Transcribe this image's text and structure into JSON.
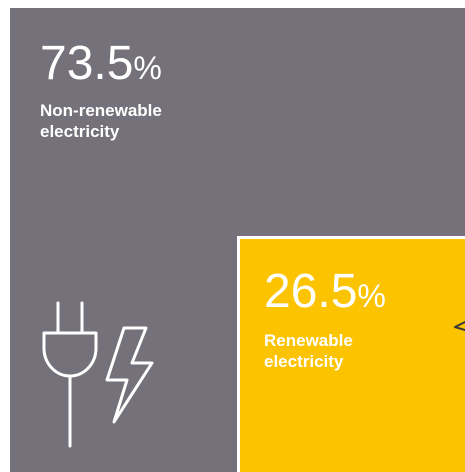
{
  "chart_data": {
    "type": "treemap",
    "segments": [
      {
        "value_label": "73.5",
        "value": 73.5,
        "unit": "%",
        "label_line1": "Non-renewable",
        "label_line2": "electricity",
        "color": "#74717a"
      },
      {
        "value_label": "26.5",
        "value": 26.5,
        "unit": "%",
        "label_line1": "Renewable",
        "label_line2": "electricity",
        "color": "#fcc300"
      }
    ]
  },
  "icons": {
    "plug": "plug-icon",
    "bolt": "lightning-bolt-icon",
    "partial": "partial-icon"
  }
}
